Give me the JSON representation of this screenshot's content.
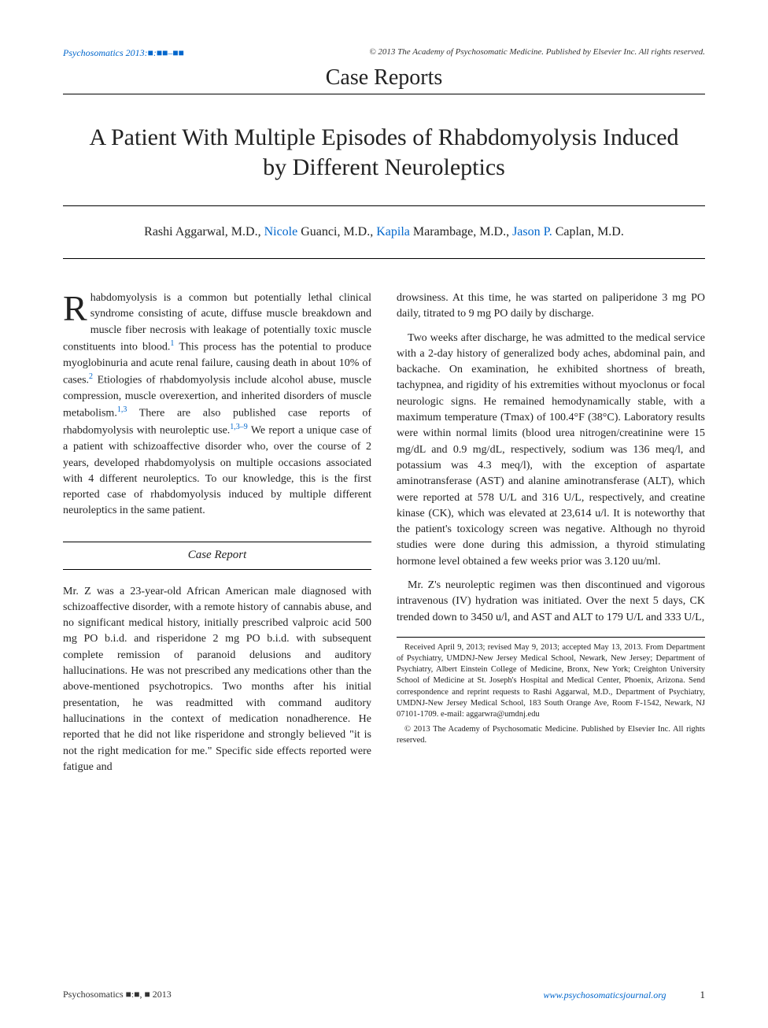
{
  "header": {
    "journal_ref": "Psychosomatics 2013:■:■■–■■",
    "copyright": "© 2013 The Academy of Psychosomatic Medicine. Published by Elsevier Inc. All rights reserved."
  },
  "section_type": "Case Reports",
  "title": "A Patient With Multiple Episodes of Rhabdomyolysis Induced by Different Neuroleptics",
  "authors": {
    "a1_pre": "Rashi Aggarwal, M.D., ",
    "a2_link": "Nicole",
    "a2_post": " Guanci, M.D., ",
    "a3_link": "Kapila",
    "a3_post": " Marambage, M.D., ",
    "a4_link": "Jason P.",
    "a4_post": " Caplan, M.D."
  },
  "body": {
    "dropcap": "R",
    "intro_p1": "habdomyolysis is a common but potentially lethal clinical syndrome consisting of acute, diffuse muscle breakdown and muscle fiber necrosis with leakage of potentially toxic muscle constituents into blood.",
    "sup1": "1",
    "intro_p1b": " This process has the potential to produce myoglobinuria and acute renal failure, causing death in about 10% of cases.",
    "sup2": "2",
    "intro_p1c": " Etiologies of rhabdomyolysis include alcohol abuse, muscle compression, muscle overexertion, and inherited disorders of muscle metabolism.",
    "sup3": "1,3",
    "intro_p1d": " There are also published case reports of rhabdomyolysis with neuroleptic use.",
    "sup4": "1,3–9",
    "intro_p1e": " We report a unique case of a patient with schizoaffective disorder who, over the course of 2 years, developed rhabdomyolysis on multiple occasions associated with 4 different neuroleptics. To our knowledge, this is the first reported case of rhabdomyolysis induced by multiple different neuroleptics in the same patient.",
    "case_heading": "Case Report",
    "case_p1": "Mr. Z was a 23-year-old African American male diagnosed with schizoaffective disorder, with a remote history of cannabis abuse, and no significant medical history, initially prescribed valproic acid 500 mg PO b.i.d. and risperidone 2 mg PO b.i.d. with subsequent complete remission of paranoid delusions and auditory hallucinations. He was not prescribed any medications other than the above-mentioned psychotropics. Two months after his initial presentation, he was readmitted with command auditory hallucinations in the context of medication nonadherence. He reported that he did not like risperidone and strongly believed \"it is not the right medication for me.\" Specific side effects reported were fatigue and",
    "col2_p1": "drowsiness. At this time, he was started on paliperidone 3 mg PO daily, titrated to 9 mg PO daily by discharge.",
    "col2_p2": "Two weeks after discharge, he was admitted to the medical service with a 2-day history of generalized body aches, abdominal pain, and backache. On examination, he exhibited shortness of breath, tachypnea, and rigidity of his extremities without myoclonus or focal neurologic signs. He remained hemodynamically stable, with a maximum temperature (Tmax) of 100.4°F (38°C). Laboratory results were within normal limits (blood urea nitrogen/creatinine were 15 mg/dL and 0.9 mg/dL, respectively, sodium was 136 meq/l, and potassium was 4.3 meq/l), with the exception of aspartate aminotransferase (AST) and alanine aminotransferase (ALT), which were reported at 578 U/L and 316 U/L, respectively, and creatine kinase (CK), which was elevated at 23,614 u/l. It is noteworthy that the patient's toxicology screen was negative. Although no thyroid studies were done during this admission, a thyroid stimulating hormone level obtained a few weeks prior was 3.120 uu/ml.",
    "col2_p3": "Mr. Z's neuroleptic regimen was then discontinued and vigorous intravenous (IV) hydration was initiated. Over the next 5 days, CK trended down to 3450 u/l, and AST and ALT to 179 U/L and 333 U/L,"
  },
  "affiliations": {
    "p1": "Received April 9, 2013; revised May 9, 2013; accepted May 13, 2013. From Department of Psychiatry, UMDNJ-New Jersey Medical School, Newark, New Jersey; Department of Psychiatry, Albert Einstein College of Medicine, Bronx, New York; Creighton University School of Medicine at St. Joseph's Hospital and Medical Center, Phoenix, Arizona. Send correspondence and reprint requests to Rashi Aggarwal, M.D., Department of Psychiatry, UMDNJ-New Jersey Medical School, 183 South Orange Ave, Room F-1542, Newark, NJ 07101-1709. e-mail: aggarwra@umdnj.edu",
    "p2": "© 2013 The Academy of Psychosomatic Medicine. Published by Elsevier Inc. All rights reserved."
  },
  "footer": {
    "left": "Psychosomatics ■:■, ■ 2013",
    "right": "www.psychosomaticsjournal.org",
    "page": "1"
  }
}
